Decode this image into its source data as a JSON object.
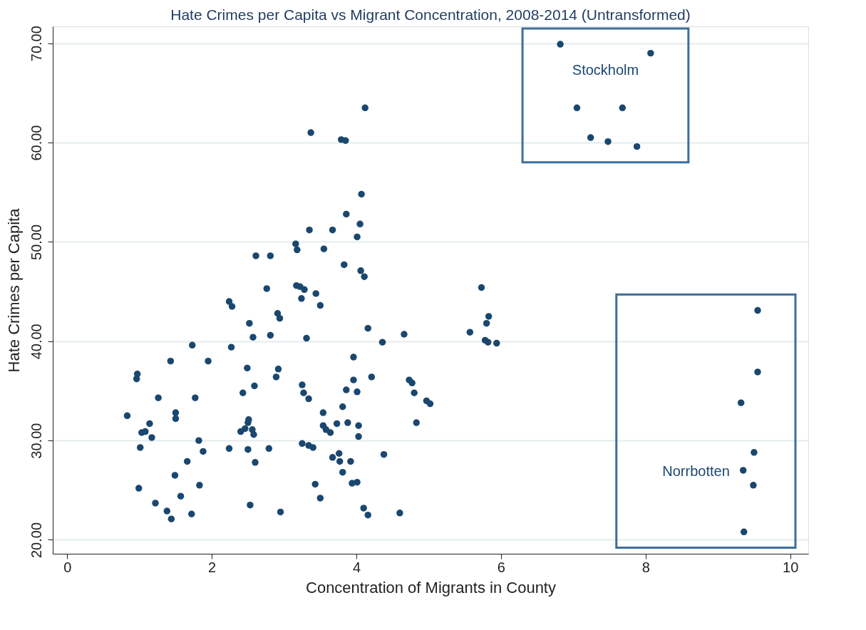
{
  "chart_data": {
    "type": "scatter",
    "title": "Hate Crimes per Capita vs Migrant Concentration, 2008-2014 (Untransformed)",
    "xlabel": "Concentration of Migrants in County",
    "ylabel": "Hate Crimes per Capita",
    "xlim": [
      -0.2,
      10.25
    ],
    "ylim": [
      18.6,
      71.7
    ],
    "xticks": [
      0,
      2,
      4,
      6,
      8,
      10
    ],
    "yticks": [
      {
        "value": 20,
        "label": "20.00"
      },
      {
        "value": 30,
        "label": "30.00"
      },
      {
        "value": 40,
        "label": "40.00"
      },
      {
        "value": 50,
        "label": "50.00"
      },
      {
        "value": 60,
        "label": "60.00"
      },
      {
        "value": 70,
        "label": "70.00"
      }
    ],
    "grid": "y",
    "marker": "circle",
    "legend": false,
    "series": [
      {
        "color": "#1a476f",
        "x": [
          0.83,
          0.96,
          0.97,
          0.99,
          1.01,
          1.03,
          1.08,
          1.14,
          1.17,
          1.22,
          1.26,
          1.38,
          1.43,
          1.44,
          1.49,
          1.5,
          1.5,
          1.57,
          1.66,
          1.72,
          1.73,
          1.77,
          1.82,
          1.83,
          1.88,
          1.95,
          2.24,
          2.28,
          2.24,
          2.27,
          2.43,
          2.4,
          2.46,
          2.49,
          2.5,
          2.51,
          2.5,
          2.52,
          2.53,
          2.56,
          2.58,
          2.57,
          2.59,
          2.6,
          2.61,
          2.76,
          2.79,
          2.81,
          2.81,
          2.89,
          2.91,
          2.94,
          2.92,
          2.95,
          3.16,
          3.18,
          3.17,
          3.22,
          3.24,
          3.28,
          3.25,
          3.27,
          3.25,
          3.31,
          3.34,
          3.34,
          3.35,
          3.37,
          3.4,
          3.43,
          3.44,
          3.5,
          3.5,
          3.54,
          3.54,
          3.55,
          3.58,
          3.64,
          3.67,
          3.67,
          3.73,
          3.76,
          3.77,
          3.79,
          3.85,
          3.81,
          3.81,
          3.83,
          3.86,
          3.86,
          3.88,
          3.92,
          3.94,
          3.96,
          3.96,
          4.01,
          4.01,
          4.01,
          4.03,
          4.03,
          4.05,
          4.07,
          4.06,
          4.11,
          4.1,
          4.12,
          4.16,
          4.16,
          4.21,
          4.38,
          4.36,
          4.6,
          4.66,
          4.73,
          4.77,
          4.8,
          4.83,
          4.97,
          5.02,
          5.57,
          5.73,
          5.78,
          5.82,
          5.8,
          5.83,
          5.94
        ],
        "values": [
          32.5,
          36.2,
          36.7,
          25.2,
          29.3,
          30.8,
          30.9,
          31.7,
          30.3,
          23.7,
          34.3,
          22.9,
          38.0,
          22.1,
          26.5,
          32.8,
          32.2,
          24.4,
          27.9,
          22.6,
          39.6,
          34.3,
          30.0,
          25.5,
          28.9,
          38.0,
          44.0,
          43.5,
          29.2,
          39.4,
          34.8,
          30.9,
          31.2,
          37.3,
          31.8,
          32.1,
          29.1,
          41.8,
          23.5,
          31.1,
          30.6,
          40.4,
          35.5,
          27.8,
          48.6,
          45.3,
          29.2,
          48.6,
          40.6,
          36.4,
          42.8,
          42.3,
          37.2,
          22.8,
          49.8,
          49.2,
          45.6,
          45.5,
          44.3,
          45.2,
          35.6,
          34.8,
          29.7,
          40.3,
          34.2,
          29.5,
          51.2,
          61.0,
          29.3,
          25.6,
          44.8,
          43.6,
          24.2,
          32.8,
          31.5,
          49.3,
          31.1,
          30.8,
          51.2,
          28.3,
          31.7,
          28.7,
          27.9,
          60.3,
          60.2,
          26.8,
          33.4,
          47.7,
          52.8,
          35.1,
          31.8,
          27.9,
          25.7,
          38.4,
          36.1,
          25.8,
          50.5,
          34.9,
          31.5,
          30.4,
          51.8,
          54.8,
          47.1,
          46.5,
          23.2,
          63.5,
          22.5,
          41.3,
          36.4,
          28.6,
          39.9,
          22.7,
          40.7,
          36.1,
          35.8,
          34.8,
          31.8,
          34.0,
          33.7,
          40.9,
          45.4,
          40.1,
          39.9,
          41.8,
          42.5,
          39.8
        ]
      },
      {
        "name": "Stockholm",
        "color": "#1a476f",
        "x": [
          6.82,
          8.07,
          7.05,
          7.68,
          7.24,
          7.48,
          7.88
        ],
        "values": [
          69.9,
          69.0,
          63.5,
          63.5,
          60.5,
          60.1,
          59.6
        ]
      },
      {
        "name": "Norrbotten",
        "color": "#1a476f",
        "x": [
          9.55,
          9.55,
          9.32,
          9.5,
          9.35,
          9.49,
          9.36
        ],
        "values": [
          43.1,
          36.9,
          33.8,
          28.8,
          27.0,
          25.5,
          20.8
        ]
      }
    ]
  }
}
